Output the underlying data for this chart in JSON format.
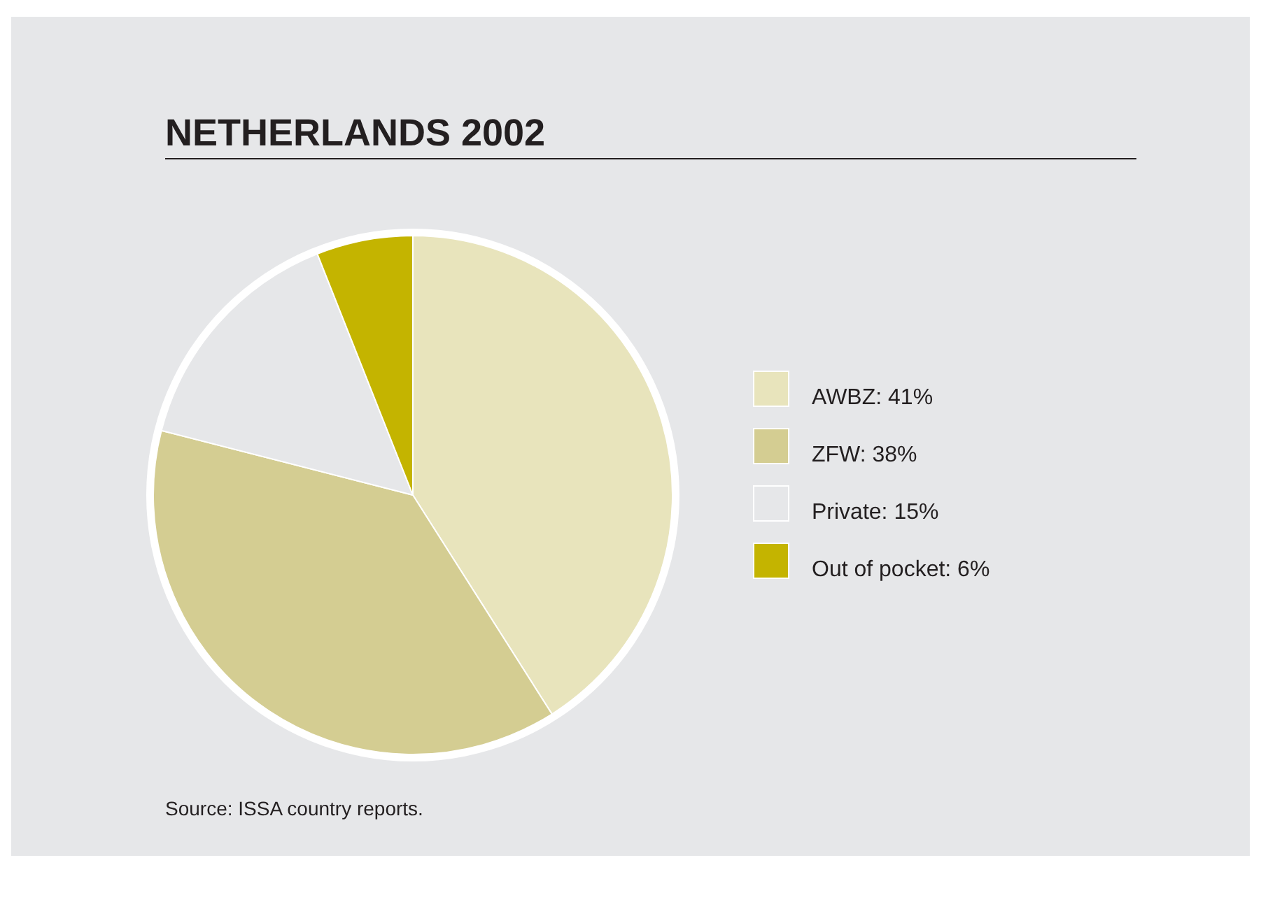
{
  "chart_data": {
    "type": "pie",
    "title": "NETHERLANDS 2002",
    "categories": [
      "AWBZ: 41%",
      "ZFW: 38%",
      "Private: 15%",
      "Out of pocket: 6%"
    ],
    "values": [
      41,
      38,
      15,
      6
    ],
    "colors": [
      "#e8e4bc",
      "#d4cd92",
      "#e6e7e9",
      "#c4b400"
    ],
    "legend": "right",
    "annotations": [
      "Source: ISSA country reports."
    ]
  }
}
